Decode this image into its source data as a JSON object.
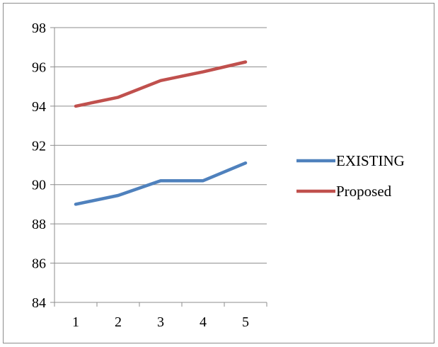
{
  "chart_data": {
    "type": "line",
    "title": "",
    "xlabel": "",
    "ylabel": "",
    "x": [
      1,
      2,
      3,
      4,
      5
    ],
    "ylim": [
      84,
      98
    ],
    "yticks": [
      84,
      86,
      88,
      90,
      92,
      94,
      96,
      98
    ],
    "grid": true,
    "legend_position": "right",
    "series": [
      {
        "name": "EXISTING",
        "color": "#4f81bd",
        "values": [
          89.0,
          89.45,
          90.2,
          90.2,
          91.1
        ]
      },
      {
        "name": "Proposed",
        "color": "#c0504d",
        "values": [
          94.0,
          94.45,
          95.3,
          95.75,
          96.25
        ]
      }
    ]
  }
}
